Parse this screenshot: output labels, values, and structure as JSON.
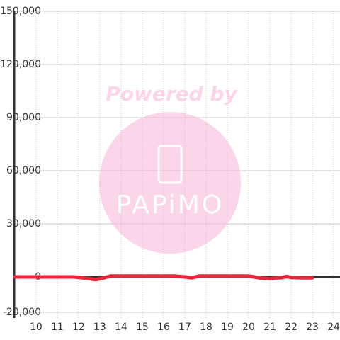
{
  "chart_data": {
    "type": "line",
    "watermark": "Powered by",
    "watermark_logo": "PAPiMO",
    "x": [
      9,
      11.8,
      12.2,
      12.8,
      13.2,
      13.5,
      14,
      15,
      16,
      16.5,
      17,
      17.3,
      17.7,
      18,
      19,
      20,
      20.5,
      21,
      21.3,
      21.5,
      21.8,
      22,
      22.5,
      23
    ],
    "series": [
      {
        "color": "#e8253a",
        "values": [
          0,
          0,
          -500,
          -1500,
          -500,
          500,
          500,
          500,
          500,
          500,
          0,
          -500,
          500,
          500,
          500,
          500,
          -500,
          -1000,
          -500,
          -500,
          200,
          -300,
          -500,
          -500
        ]
      }
    ],
    "xlim": [
      8.97,
      24.3
    ],
    "xticks": [
      10,
      11,
      12,
      13,
      14,
      15,
      16,
      17,
      18,
      19,
      20,
      21,
      22,
      23,
      24
    ],
    "ylim": [
      -20000,
      150000
    ],
    "yticks": [
      {
        "value": -20000,
        "label": "-20,000"
      },
      {
        "value": 0,
        "label": "0"
      },
      {
        "value": 30000,
        "label": "30,000"
      },
      {
        "value": 60000,
        "label": "60,000"
      },
      {
        "value": 90000,
        "label": "90,000"
      },
      {
        "value": 120000,
        "label": "120,000"
      },
      {
        "value": 150000,
        "label": "150,000"
      }
    ],
    "grid": true
  }
}
